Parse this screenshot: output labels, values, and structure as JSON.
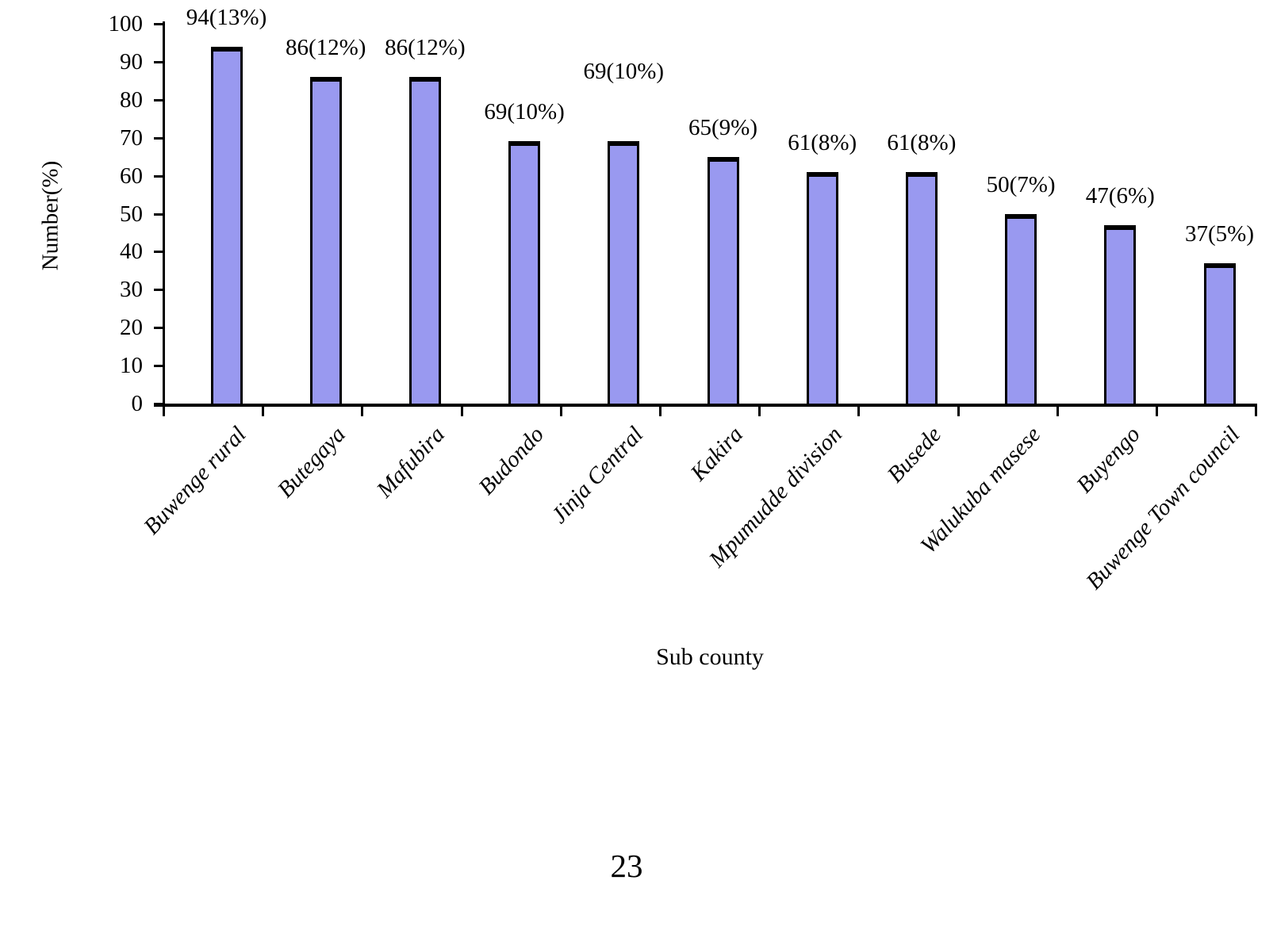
{
  "page": {
    "number": "23"
  },
  "chart_data": {
    "type": "bar",
    "title": "",
    "xlabel": "Sub county",
    "ylabel": "Number(%)",
    "categories": [
      "Buwenge rural",
      "Butegaya",
      "Mafubira",
      "Budondo",
      "Jinja Central",
      "Kakira",
      "Mpumudde division",
      "Busede",
      "Walukuba masese",
      "Buyengo",
      "Buwenge Town council"
    ],
    "values": [
      94,
      86,
      86,
      69,
      69,
      65,
      61,
      61,
      50,
      47,
      37
    ],
    "percentages": [
      13,
      12,
      12,
      10,
      10,
      9,
      8,
      8,
      7,
      6,
      5
    ],
    "data_labels": [
      "94(13%)",
      "86(12%)",
      "86(12%)",
      "69(10%)",
      "69(10%)",
      "65(9%)",
      "61(8%)",
      "61(8%)",
      "50(7%)",
      "47(6%)",
      "37(5%)"
    ],
    "ylim": [
      0,
      100
    ],
    "ytick_step": 10,
    "ytick_labels": [
      "0",
      "10",
      "20",
      "30",
      "40",
      "50",
      "60",
      "70",
      "80",
      "90",
      "100"
    ],
    "grid": "off",
    "legend": "none",
    "bar_color": "#9999F0",
    "bar_border_color": "#000000",
    "axis_color": "#000000",
    "raised_label_index": 4,
    "label_gap_default": 21,
    "label_gap_raised": 72
  }
}
